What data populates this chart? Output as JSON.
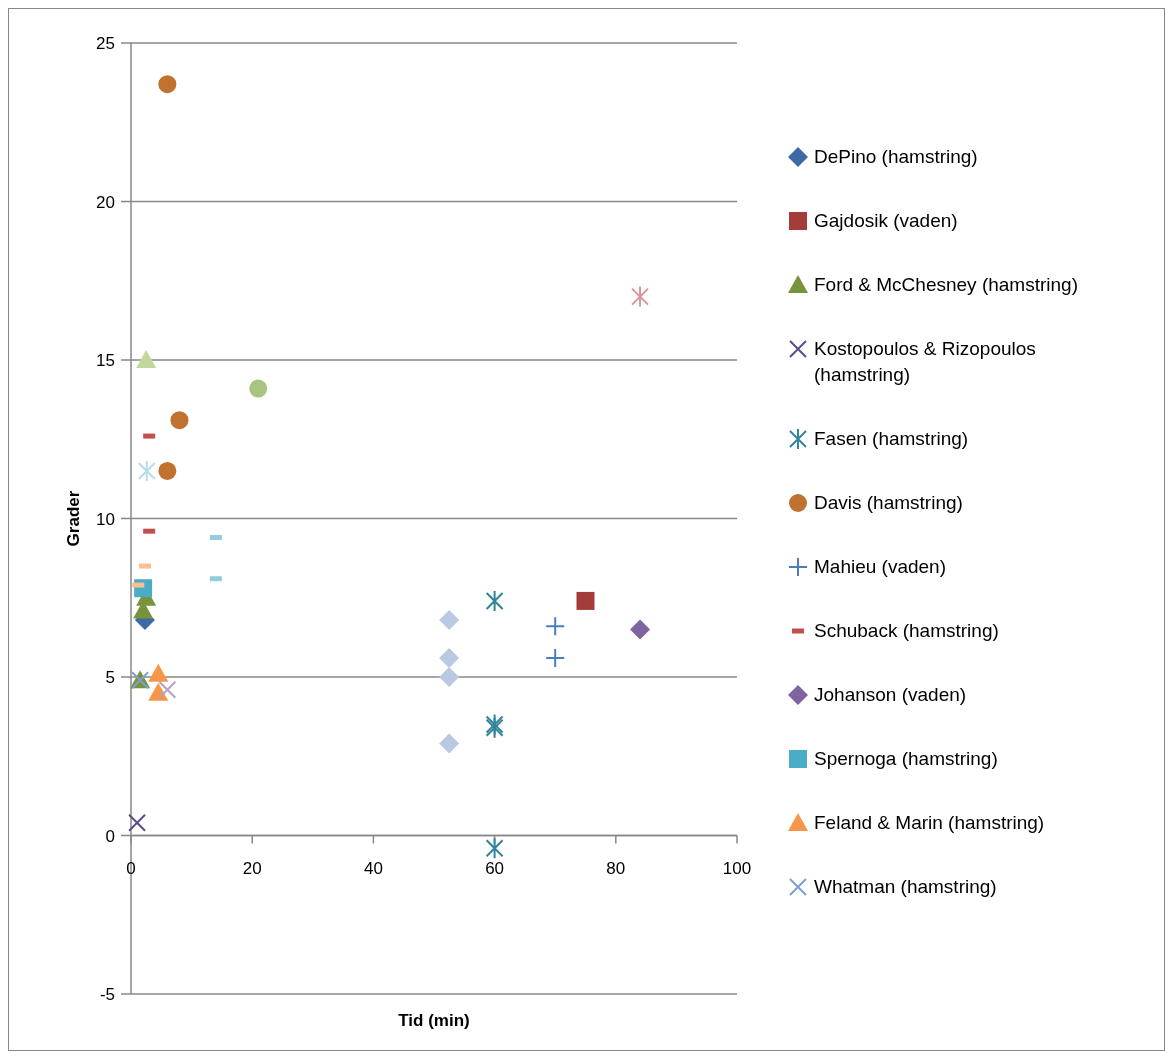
{
  "chart_data": {
    "type": "scatter",
    "xlabel": "Tid (min)",
    "ylabel": "Grader",
    "xlim": [
      0,
      100
    ],
    "xticks": [
      0,
      20,
      40,
      60,
      80,
      100
    ],
    "ylim": [
      -5,
      25
    ],
    "yticks": [
      -5,
      0,
      5,
      10,
      15,
      20,
      25
    ],
    "grid": "y",
    "legend": "right",
    "series": [
      {
        "name": "DePino (hamstring)",
        "color": "#3e6ba6",
        "marker": "diamond",
        "x": [
          2.3
        ],
        "values": [
          6.8
        ]
      },
      {
        "name": "Gajdosik (vaden)",
        "color": "#a33c3a",
        "marker": "square",
        "x": [
          75
        ],
        "values": [
          7.4
        ]
      },
      {
        "name": "Ford & McChesney (hamstring)",
        "color": "#77933c",
        "marker": "triangle",
        "x": [
          2,
          2.5,
          1.5
        ],
        "values": [
          7.1,
          7.5,
          4.9
        ]
      },
      {
        "name": "Kostopoulos & Rizopoulos (hamstring)",
        "color": "#5f4b8b",
        "marker": "x",
        "x": [
          1
        ],
        "values": [
          0.4
        ]
      },
      {
        "name": "Fasen (hamstring)",
        "color": "#31849b",
        "marker": "cross",
        "x": [
          60,
          60,
          60,
          60
        ],
        "values": [
          7.4,
          3.5,
          3.4,
          -0.4
        ]
      },
      {
        "name": "Davis (hamstring)",
        "color": "#c0722e",
        "marker": "circle",
        "x": [
          6,
          8,
          6
        ],
        "values": [
          23.7,
          13.1,
          11.5
        ]
      },
      {
        "name": "Mahieu (vaden)",
        "color": "#4a7ebb",
        "marker": "plus",
        "x": [
          70,
          70
        ],
        "values": [
          6.6,
          5.6
        ]
      },
      {
        "name": "Schuback (hamstring)",
        "color": "#c0504d",
        "x": [
          3,
          3
        ],
        "values": [
          12.6,
          9.6
        ]
      },
      {
        "name": "Johanson (vaden)",
        "color": "#8064a2",
        "marker": "diamond",
        "x": [
          84
        ],
        "values": [
          6.5
        ]
      },
      {
        "name": "Spernoga (hamstring)",
        "color": "#4bacc6",
        "marker": "square",
        "x": [
          2
        ],
        "values": [
          7.8
        ]
      },
      {
        "name": "Feland & Marin (hamstring)",
        "color": "#f79646",
        "marker": "triangle",
        "x": [
          4.5,
          4.5
        ],
        "values": [
          5.1,
          4.5
        ]
      },
      {
        "name": "Whatman (hamstring)",
        "color": "#7f9fd3",
        "marker": "x",
        "x": [
          1.5
        ],
        "values": [
          4.9
        ]
      },
      {
        "color": "#b7dde8",
        "marker": "cross",
        "x": [
          2.6
        ],
        "values": [
          11.5
        ]
      },
      {
        "color": "#fac090",
        "x": [
          2.3,
          1.2
        ],
        "values": [
          8.5,
          7.9
        ]
      },
      {
        "color": "#93cddd",
        "x": [
          14,
          14
        ],
        "values": [
          9.4,
          8.1
        ]
      },
      {
        "color": "#c3d69b",
        "marker": "triangle",
        "x": [
          2.5
        ],
        "values": [
          15
        ]
      },
      {
        "color": "#a9c47f",
        "marker": "circle",
        "x": [
          21
        ],
        "values": [
          14.1
        ]
      },
      {
        "color": "#b9c9e2",
        "marker": "diamond",
        "x": [
          52.5,
          52.5,
          52.5,
          52.5
        ],
        "values": [
          6.8,
          5.6,
          5.0,
          2.9
        ]
      },
      {
        "color": "#d99694",
        "marker": "cross",
        "x": [
          84
        ],
        "values": [
          17
        ]
      },
      {
        "color": "#b3a2c7",
        "marker": "x",
        "x": [
          6
        ],
        "values": [
          4.6
        ]
      }
    ]
  }
}
